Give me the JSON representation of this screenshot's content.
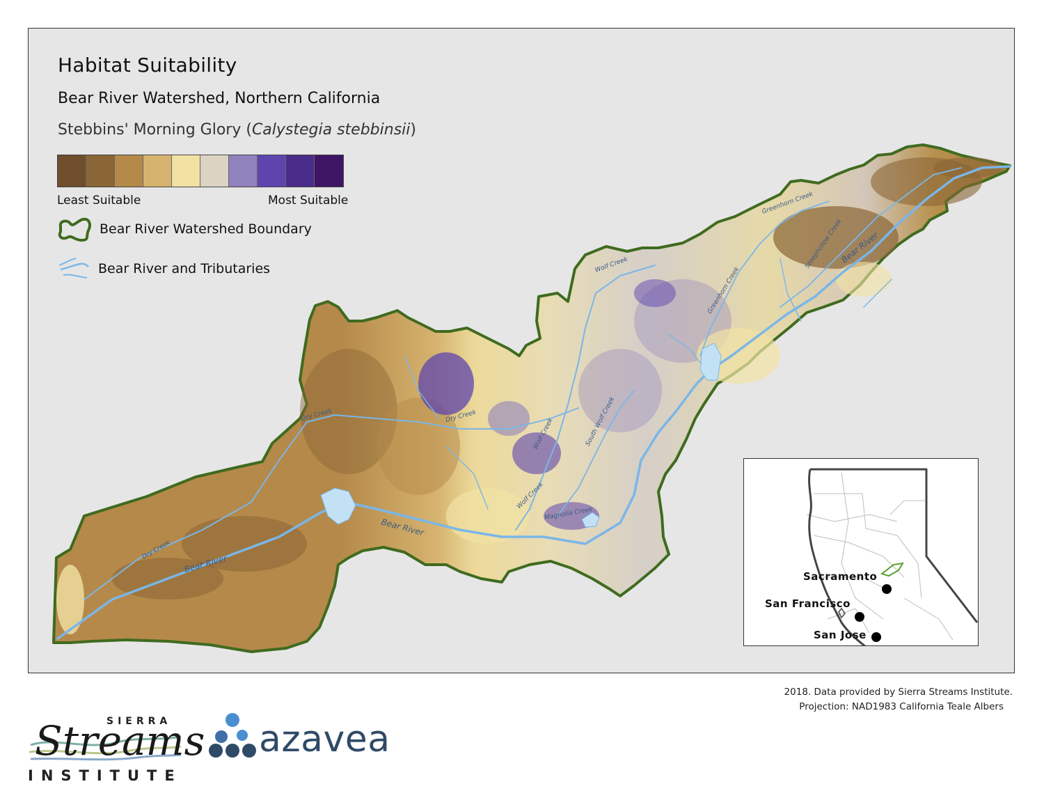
{
  "title": "Habitat Suitability",
  "subtitle": "Bear River Watershed, Northern California",
  "species": {
    "common": "Stebbins' Morning Glory (",
    "scientific": "Calystegia stebbinsii",
    "close": ")"
  },
  "legend": {
    "ramp_colors": [
      "#6e4e2d",
      "#8a6535",
      "#b5894a",
      "#d6b36e",
      "#f1e2a4",
      "#ddd3c2",
      "#9082bd",
      "#5e45ad",
      "#4a2d8a",
      "#3f1666"
    ],
    "least_label": "Least Suitable",
    "most_label": "Most Suitable",
    "boundary_label": "Bear River Watershed Boundary",
    "rivers_label": "Bear River and Tributaries",
    "boundary_color": "#3f6b1f",
    "river_color": "#7ab6e8"
  },
  "map_labels": {
    "bear_river_1": "Bear River",
    "bear_river_2": "Bear River",
    "bear_river_3": "Bear River",
    "dry_creek_1": "Dry Creek",
    "dry_creek_2": "Dry Creek",
    "dry_creek_3": "Dry Creek",
    "wolf_creek_1": "Wolf Creek",
    "wolf_creek_2": "Wolf Creek",
    "wolf_creek_3": "Wolf Creek",
    "south_wolf_creek": "South Wolf Creek",
    "magnolia_creek": "Magnolia Creek",
    "greenhorn_creek_1": "Greenhorn Creek",
    "greenhorn_creek_2": "Greenhorn Creek",
    "steephollow_creek": "Steephollow Creek"
  },
  "inset": {
    "cities": [
      {
        "name": "Sacramento"
      },
      {
        "name": "San Francisco"
      },
      {
        "name": "San Jose"
      }
    ]
  },
  "credits": {
    "line1": "2018. Data provided by Sierra Streams Institute.",
    "line2": "Projection: NAD1983 California Teale Albers"
  },
  "logos": {
    "sierra_top": "SIERRA",
    "sierra_main": "Streams",
    "sierra_bottom": "INSTITUTE",
    "azavea": "azavea"
  }
}
